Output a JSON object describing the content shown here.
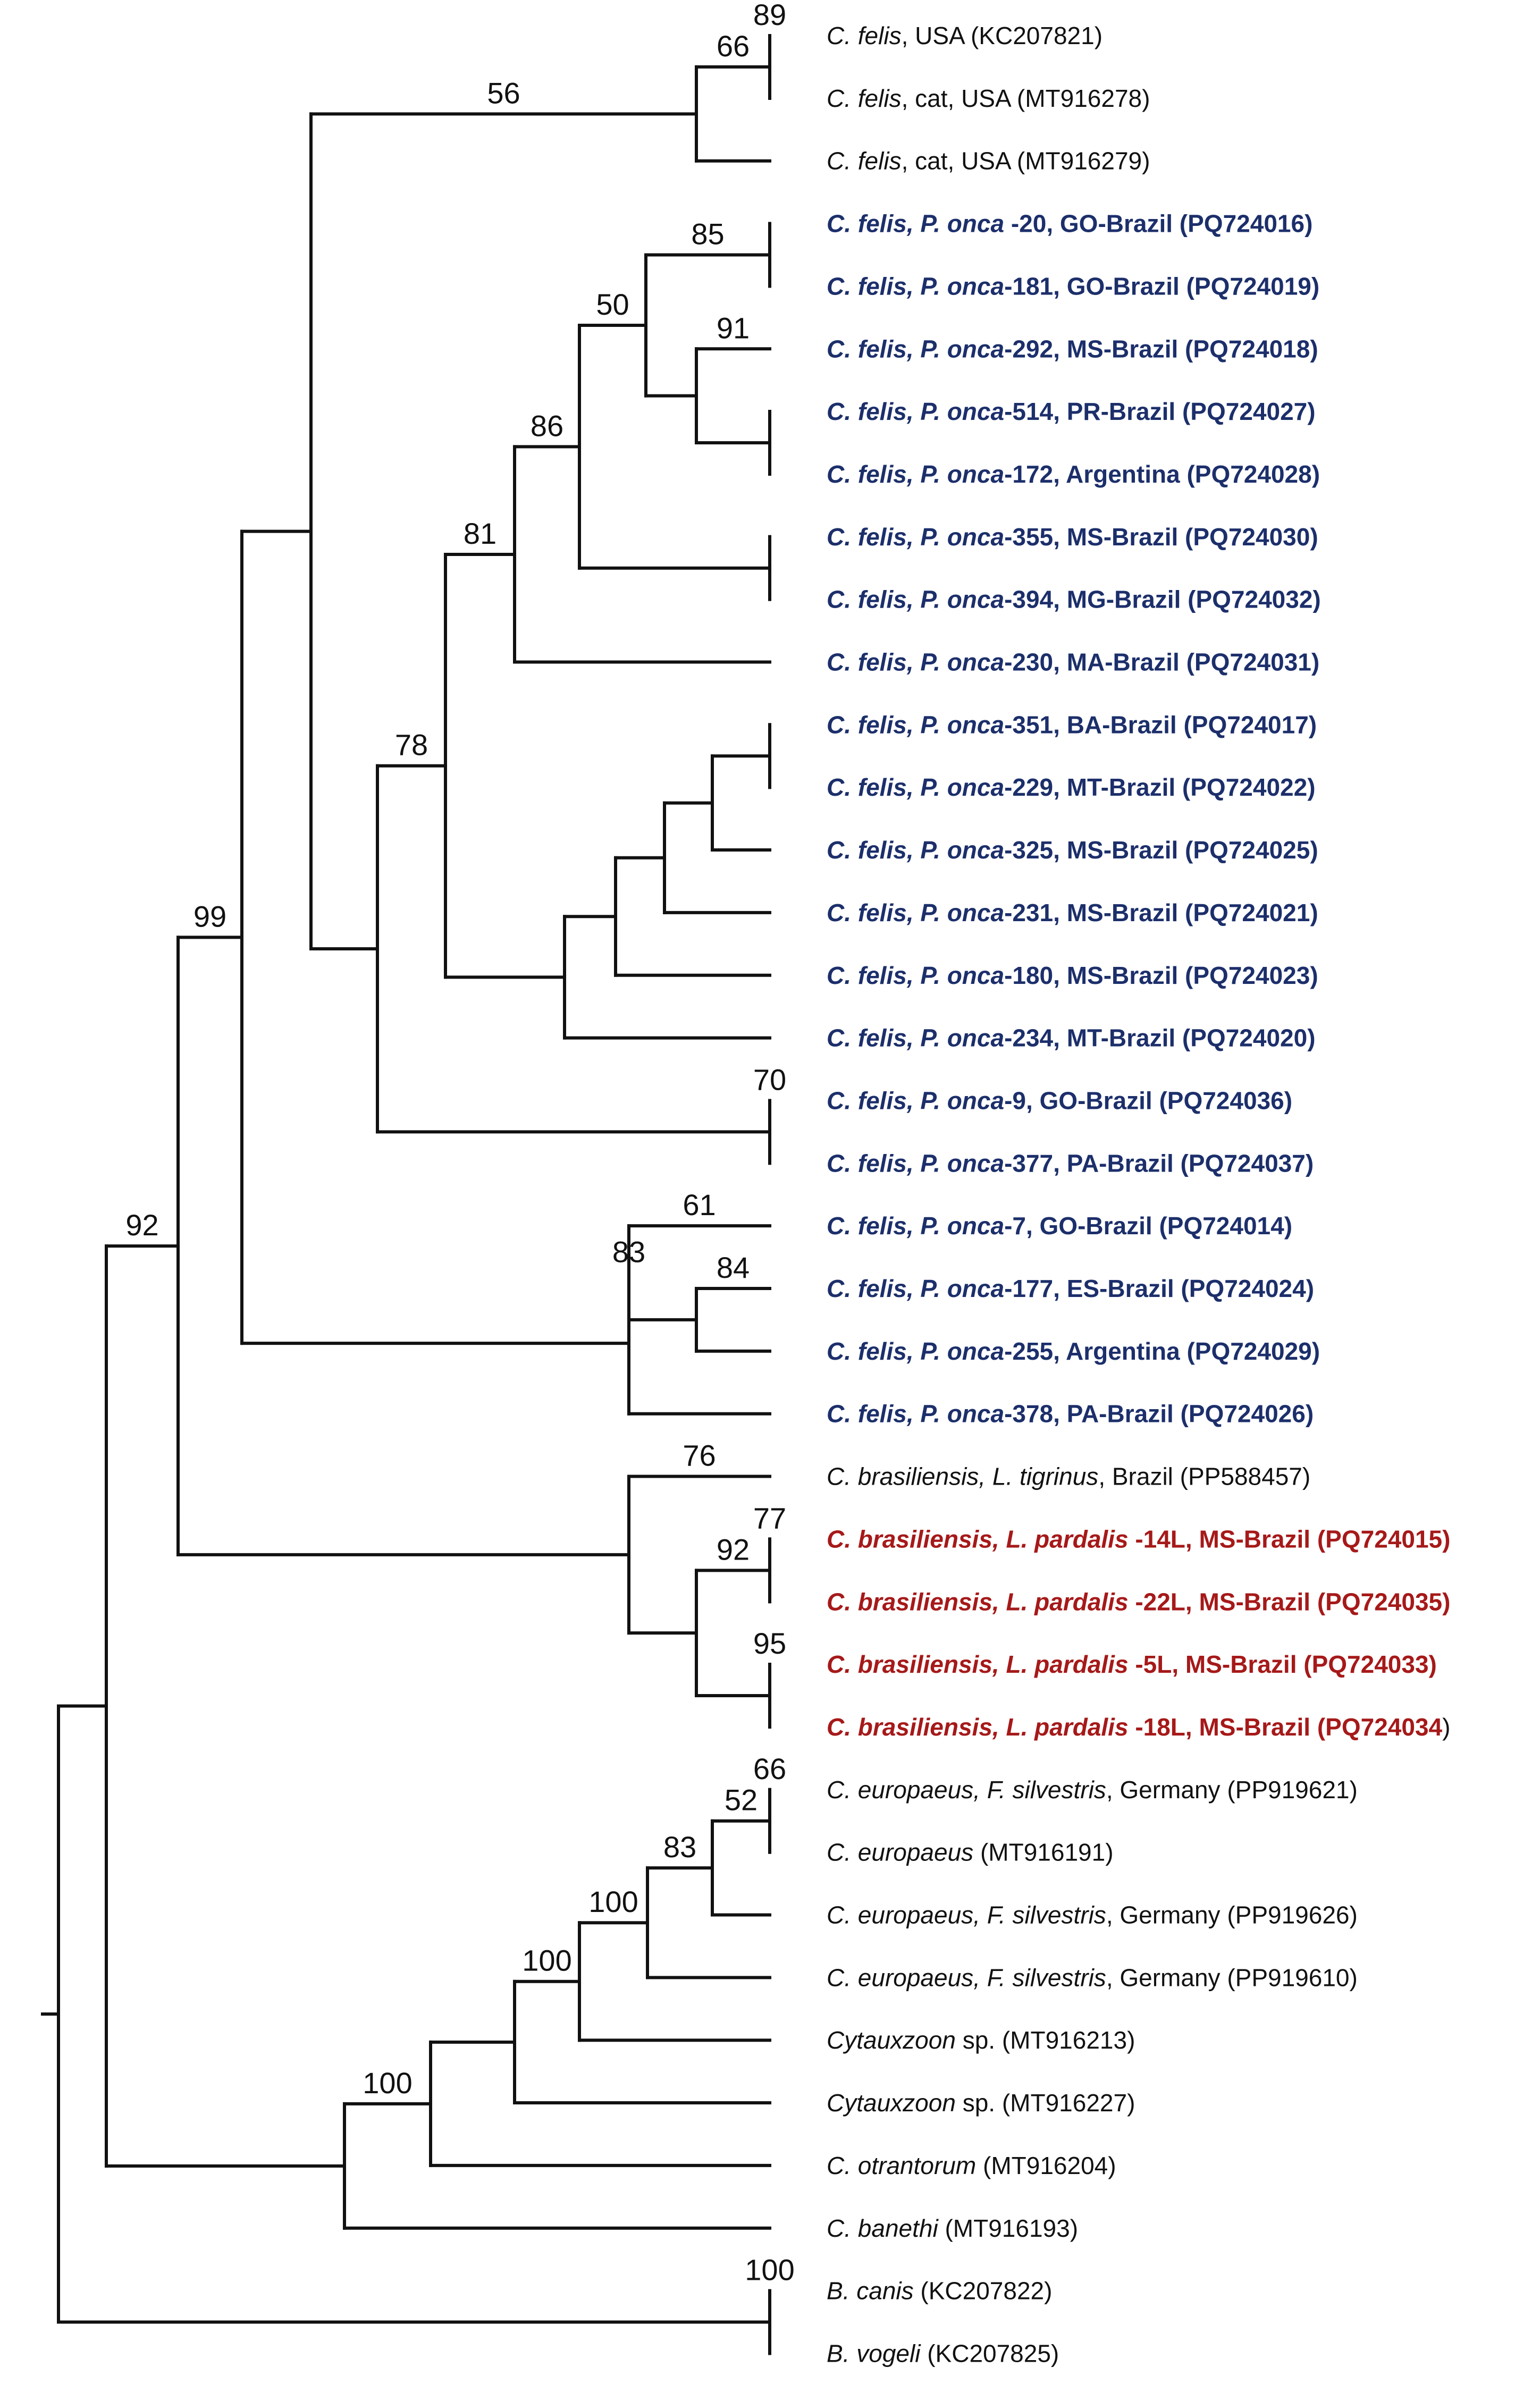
{
  "colors": {
    "branch": "#111111",
    "reference_taxon": "#111111",
    "cytauxzoon_felis_panthera_onca": "#1c2f6b",
    "cytauxzoon_brasiliensis_leopardus_pardalis": "#a61919"
  },
  "taxa": [
    {
      "id": "t1",
      "color": "reference_taxon",
      "bold": false,
      "parts": [
        {
          "t": "C. felis",
          "i": true
        },
        {
          "t": ", USA (KC207821)",
          "i": false
        }
      ]
    },
    {
      "id": "t2",
      "color": "reference_taxon",
      "bold": false,
      "parts": [
        {
          "t": "C. felis",
          "i": true
        },
        {
          "t": ", cat, USA (MT916278)",
          "i": false
        }
      ]
    },
    {
      "id": "t3",
      "color": "reference_taxon",
      "bold": false,
      "parts": [
        {
          "t": "C. felis",
          "i": true
        },
        {
          "t": ", cat, USA (MT916279)",
          "i": false
        }
      ]
    },
    {
      "id": "t4",
      "color": "cytauxzoon_felis_panthera_onca",
      "bold": true,
      "parts": [
        {
          "t": "C. felis, P. onca",
          "i": true
        },
        {
          "t": " -20, GO-Brazil (PQ724016)",
          "i": false
        }
      ]
    },
    {
      "id": "t5",
      "color": "cytauxzoon_felis_panthera_onca",
      "bold": true,
      "parts": [
        {
          "t": "C. felis, P. onca",
          "i": true
        },
        {
          "t": "-181, GO-Brazil (PQ724019)",
          "i": false
        }
      ]
    },
    {
      "id": "t6",
      "color": "cytauxzoon_felis_panthera_onca",
      "bold": true,
      "parts": [
        {
          "t": "C. felis, P. onca",
          "i": true
        },
        {
          "t": "-292, MS-Brazil (PQ724018)",
          "i": false
        }
      ]
    },
    {
      "id": "t7",
      "color": "cytauxzoon_felis_panthera_onca",
      "bold": true,
      "parts": [
        {
          "t": "C. felis, P. onca",
          "i": true
        },
        {
          "t": "-514, PR-Brazil (PQ724027)",
          "i": false
        }
      ]
    },
    {
      "id": "t8",
      "color": "cytauxzoon_felis_panthera_onca",
      "bold": true,
      "parts": [
        {
          "t": "C. felis, P. onca",
          "i": true
        },
        {
          "t": "-172, Argentina (PQ724028)",
          "i": false
        }
      ]
    },
    {
      "id": "t9",
      "color": "cytauxzoon_felis_panthera_onca",
      "bold": true,
      "parts": [
        {
          "t": "C. felis, P. onca",
          "i": true
        },
        {
          "t": "-355, MS-Brazil (PQ724030)",
          "i": false
        }
      ]
    },
    {
      "id": "t10",
      "color": "cytauxzoon_felis_panthera_onca",
      "bold": true,
      "parts": [
        {
          "t": "C. felis, P. onca",
          "i": true
        },
        {
          "t": "-394, MG-Brazil (PQ724032)",
          "i": false
        }
      ]
    },
    {
      "id": "t11",
      "color": "cytauxzoon_felis_panthera_onca",
      "bold": true,
      "parts": [
        {
          "t": "C. felis, P. onca",
          "i": true
        },
        {
          "t": "-230, MA-Brazil (PQ724031)",
          "i": false
        }
      ]
    },
    {
      "id": "t12",
      "color": "cytauxzoon_felis_panthera_onca",
      "bold": true,
      "parts": [
        {
          "t": "C. felis, P. onca",
          "i": true
        },
        {
          "t": "-351, BA-Brazil (PQ724017)",
          "i": false
        }
      ]
    },
    {
      "id": "t13",
      "color": "cytauxzoon_felis_panthera_onca",
      "bold": true,
      "parts": [
        {
          "t": "C. felis, P. onca",
          "i": true
        },
        {
          "t": "-229, MT-Brazil (PQ724022)",
          "i": false
        }
      ]
    },
    {
      "id": "t14",
      "color": "cytauxzoon_felis_panthera_onca",
      "bold": true,
      "parts": [
        {
          "t": "C. felis, P. onca",
          "i": true
        },
        {
          "t": "-325, MS-Brazil (PQ724025)",
          "i": false
        }
      ]
    },
    {
      "id": "t15",
      "color": "cytauxzoon_felis_panthera_onca",
      "bold": true,
      "parts": [
        {
          "t": "C. felis, P. onca",
          "i": true
        },
        {
          "t": "-231, MS-Brazil (PQ724021)",
          "i": false
        }
      ]
    },
    {
      "id": "t16",
      "color": "cytauxzoon_felis_panthera_onca",
      "bold": true,
      "parts": [
        {
          "t": "C. felis, P. onca",
          "i": true
        },
        {
          "t": "-180, MS-Brazil (PQ724023)",
          "i": false
        }
      ]
    },
    {
      "id": "t17",
      "color": "cytauxzoon_felis_panthera_onca",
      "bold": true,
      "parts": [
        {
          "t": "C. felis, P. onca",
          "i": true
        },
        {
          "t": "-234, MT-Brazil (PQ724020)",
          "i": false
        }
      ]
    },
    {
      "id": "t18",
      "color": "cytauxzoon_felis_panthera_onca",
      "bold": true,
      "parts": [
        {
          "t": "C. felis, P. onca",
          "i": true
        },
        {
          "t": "-9, GO-Brazil (PQ724036)",
          "i": false
        }
      ]
    },
    {
      "id": "t19",
      "color": "cytauxzoon_felis_panthera_onca",
      "bold": true,
      "parts": [
        {
          "t": "C. felis, P. onca",
          "i": true
        },
        {
          "t": "-377, PA-Brazil (PQ724037)",
          "i": false
        }
      ]
    },
    {
      "id": "t20",
      "color": "cytauxzoon_felis_panthera_onca",
      "bold": true,
      "parts": [
        {
          "t": "C. felis, P. onca",
          "i": true
        },
        {
          "t": "-7, GO-Brazil (PQ724014)",
          "i": false
        }
      ]
    },
    {
      "id": "t21",
      "color": "cytauxzoon_felis_panthera_onca",
      "bold": true,
      "parts": [
        {
          "t": "C. felis, P. onca",
          "i": true
        },
        {
          "t": "-177, ES-Brazil (PQ724024)",
          "i": false
        }
      ]
    },
    {
      "id": "t22",
      "color": "cytauxzoon_felis_panthera_onca",
      "bold": true,
      "parts": [
        {
          "t": "C. felis, P. onca",
          "i": true
        },
        {
          "t": "-255, Argentina (PQ724029)",
          "i": false
        }
      ]
    },
    {
      "id": "t23",
      "color": "cytauxzoon_felis_panthera_onca",
      "bold": true,
      "parts": [
        {
          "t": "C. felis, P. onca",
          "i": true
        },
        {
          "t": "-378, PA-Brazil (PQ724026)",
          "i": false
        }
      ]
    },
    {
      "id": "t24",
      "color": "reference_taxon",
      "bold": false,
      "parts": [
        {
          "t": "C. brasiliensis, L. tigrinus",
          "i": true
        },
        {
          "t": ", Brazil (PP588457)",
          "i": false
        }
      ]
    },
    {
      "id": "t25",
      "color": "cytauxzoon_brasiliensis_leopardus_pardalis",
      "bold": true,
      "parts": [
        {
          "t": "C. brasiliensis, L. pardalis",
          "i": true
        },
        {
          "t": " -14L, MS-Brazil (PQ724015)",
          "i": false
        }
      ]
    },
    {
      "id": "t26",
      "color": "cytauxzoon_brasiliensis_leopardus_pardalis",
      "bold": true,
      "parts": [
        {
          "t": "C. brasiliensis, L. pardalis",
          "i": true
        },
        {
          "t": " -22L, MS-Brazil (PQ724035)",
          "i": false
        }
      ]
    },
    {
      "id": "t27",
      "color": "cytauxzoon_brasiliensis_leopardus_pardalis",
      "bold": true,
      "parts": [
        {
          "t": "C. brasiliensis, L. pardalis",
          "i": true
        },
        {
          "t": " -5L, MS-Brazil (PQ724033)",
          "i": false
        }
      ]
    },
    {
      "id": "t28",
      "color": "cytauxzoon_brasiliensis_leopardus_pardalis",
      "bold": true,
      "parts": [
        {
          "t": "C. brasiliensis, L. pardalis",
          "i": true
        },
        {
          "t": " -18L, MS-Brazil (PQ724034",
          "i": false
        },
        {
          "t": ")",
          "i": false,
          "plain": true
        }
      ]
    },
    {
      "id": "t29",
      "color": "reference_taxon",
      "bold": false,
      "parts": [
        {
          "t": "C. europaeus, F. silvestris",
          "i": true
        },
        {
          "t": ", Germany (PP919621)",
          "i": false
        }
      ]
    },
    {
      "id": "t30",
      "color": "reference_taxon",
      "bold": false,
      "parts": [
        {
          "t": "C. europaeus",
          "i": true
        },
        {
          "t": " (MT916191)",
          "i": false
        }
      ]
    },
    {
      "id": "t31",
      "color": "reference_taxon",
      "bold": false,
      "parts": [
        {
          "t": "C. europaeus, F. silvestris",
          "i": true
        },
        {
          "t": ", Germany (PP919626)",
          "i": false
        }
      ]
    },
    {
      "id": "t32",
      "color": "reference_taxon",
      "bold": false,
      "parts": [
        {
          "t": "C. europaeus, F. silvestris",
          "i": true
        },
        {
          "t": ", Germany (PP919610)",
          "i": false
        }
      ]
    },
    {
      "id": "t33",
      "color": "reference_taxon",
      "bold": false,
      "parts": [
        {
          "t": "Cytauxzoon",
          "i": true
        },
        {
          "t": " sp. (MT916213)",
          "i": false
        }
      ]
    },
    {
      "id": "t34",
      "color": "reference_taxon",
      "bold": false,
      "parts": [
        {
          "t": "Cytauxzoon",
          "i": true
        },
        {
          "t": " sp. (MT916227)",
          "i": false
        }
      ]
    },
    {
      "id": "t35",
      "color": "reference_taxon",
      "bold": false,
      "parts": [
        {
          "t": "C. otrantorum",
          "i": true
        },
        {
          "t": " (MT916204)",
          "i": false
        }
      ]
    },
    {
      "id": "t36",
      "color": "reference_taxon",
      "bold": false,
      "parts": [
        {
          "t": "C. banethi",
          "i": true
        },
        {
          "t": " (MT916193)",
          "i": false
        }
      ]
    },
    {
      "id": "t37",
      "color": "reference_taxon",
      "bold": false,
      "parts": [
        {
          "t": "B. canis",
          "i": true
        },
        {
          "t": " (KC207822)",
          "i": false
        }
      ]
    },
    {
      "id": "t38",
      "color": "reference_taxon",
      "bold": false,
      "parts": [
        {
          "t": "B. vogeli",
          "i": true
        },
        {
          "t": " (KC207825)",
          "i": false
        }
      ]
    }
  ],
  "clades": [
    {
      "id": "n_felis_usa",
      "children": [
        "t1",
        "t2"
      ],
      "bootstrap": "89"
    },
    {
      "id": "n_usa",
      "children": [
        "n_felis_usa",
        "t3"
      ],
      "bootstrap": "66"
    },
    {
      "id": "n_go",
      "children": [
        "t4",
        "t5"
      ],
      "bootstrap": ""
    },
    {
      "id": "n_pr_ar",
      "children": [
        "t7",
        "t8"
      ],
      "bootstrap": ""
    },
    {
      "id": "n_ms_pr",
      "children": [
        "t6",
        "n_pr_ar"
      ],
      "bootstrap": "91"
    },
    {
      "id": "n_85",
      "children": [
        "n_go",
        "n_ms_pr"
      ],
      "bootstrap": "85"
    },
    {
      "id": "n_ms_mg",
      "children": [
        "t9",
        "t10"
      ],
      "bootstrap": ""
    },
    {
      "id": "n_50",
      "children": [
        "n_85",
        "n_ms_mg"
      ],
      "bootstrap": "50"
    },
    {
      "id": "n_86",
      "children": [
        "n_50",
        "t11"
      ],
      "bootstrap": "86"
    },
    {
      "id": "n_ba_mt",
      "children": [
        "t12",
        "t13"
      ],
      "bootstrap": ""
    },
    {
      "id": "n_c2",
      "children": [
        "n_ba_mt",
        "t14"
      ],
      "bootstrap": ""
    },
    {
      "id": "n_c3",
      "children": [
        "n_c2",
        "t15"
      ],
      "bootstrap": ""
    },
    {
      "id": "n_c4",
      "children": [
        "n_c3",
        "t16"
      ],
      "bootstrap": ""
    },
    {
      "id": "n_c5",
      "children": [
        "n_c4",
        "t17"
      ],
      "bootstrap": ""
    },
    {
      "id": "n_81",
      "children": [
        "n_86",
        "n_c5"
      ],
      "bootstrap": "81"
    },
    {
      "id": "n_go_pa",
      "children": [
        "t18",
        "t19"
      ],
      "bootstrap": "70"
    },
    {
      "id": "n_78",
      "children": [
        "n_81",
        "n_go_pa"
      ],
      "bootstrap": "78"
    },
    {
      "id": "n_56",
      "children": [
        "n_usa",
        "n_78"
      ],
      "bootstrap": "56"
    },
    {
      "id": "n_84",
      "children": [
        "t21",
        "t22"
      ],
      "bootstrap": "84"
    },
    {
      "id": "n_61",
      "children": [
        "t20",
        "n_84"
      ],
      "bootstrap": "61"
    },
    {
      "id": "n_83a",
      "children": [
        "n_61",
        "t23"
      ],
      "bootstrap": "83"
    },
    {
      "id": "n_felis",
      "children": [
        "n_56",
        "n_83a"
      ],
      "bootstrap": ""
    },
    {
      "id": "n_77",
      "children": [
        "t25",
        "t26"
      ],
      "bootstrap": "77"
    },
    {
      "id": "n_95",
      "children": [
        "t27",
        "t28"
      ],
      "bootstrap": "95"
    },
    {
      "id": "n_92b",
      "children": [
        "n_77",
        "n_95"
      ],
      "bootstrap": "92"
    },
    {
      "id": "n_76",
      "children": [
        "t24",
        "n_92b"
      ],
      "bootstrap": "76"
    },
    {
      "id": "n_99",
      "children": [
        "n_felis",
        "n_76"
      ],
      "bootstrap": "99"
    },
    {
      "id": "n_eu",
      "children": [
        "t29",
        "t30"
      ],
      "bootstrap": "66"
    },
    {
      "id": "n_52",
      "children": [
        "n_eu",
        "t31"
      ],
      "bootstrap": "52"
    },
    {
      "id": "n_83b",
      "children": [
        "n_52",
        "t32"
      ],
      "bootstrap": "83"
    },
    {
      "id": "n_100a",
      "children": [
        "n_83b",
        "t33"
      ],
      "bootstrap": "100"
    },
    {
      "id": "n_100b",
      "children": [
        "n_100a",
        "t34"
      ],
      "bootstrap": "100"
    },
    {
      "id": "n_otr",
      "children": [
        "n_100b",
        "t35"
      ],
      "bootstrap": ""
    },
    {
      "id": "n_100c",
      "children": [
        "n_otr",
        "t36"
      ],
      "bootstrap": "100"
    },
    {
      "id": "n_92a",
      "children": [
        "n_99",
        "n_100c"
      ],
      "bootstrap": "92"
    },
    {
      "id": "n_bab",
      "children": [
        "t37",
        "t38"
      ],
      "bootstrap": "100"
    },
    {
      "id": "root",
      "children": [
        "n_92a",
        "n_bab"
      ],
      "bootstrap": ""
    }
  ]
}
